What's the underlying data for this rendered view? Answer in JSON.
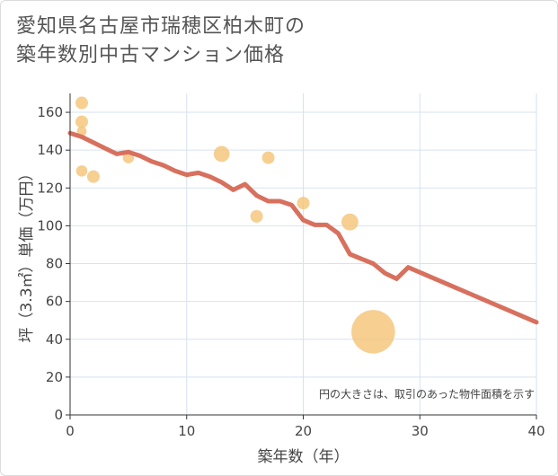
{
  "title_lines": [
    "愛知県名古屋市瑞穂区柏木町の",
    "築年数別中古マンション価格"
  ],
  "chart_data": {
    "type": "scatter",
    "xlabel": "築年数（年）",
    "ylabel": "坪（3.3㎡）単価（万円）",
    "xlim": [
      0,
      40
    ],
    "ylim": [
      0,
      170
    ],
    "xticks": [
      0,
      10,
      20,
      30,
      40
    ],
    "yticks": [
      0,
      20,
      40,
      60,
      80,
      100,
      120,
      140,
      160
    ],
    "grid": true,
    "note": "円の大きさは、取引のあった物件面積を示す",
    "bubble_color": "#f5c77e",
    "line_color": "#d8705e",
    "bubbles": [
      {
        "x": 1,
        "y": 165,
        "size": 1
      },
      {
        "x": 1,
        "y": 155,
        "size": 1
      },
      {
        "x": 1,
        "y": 150,
        "size": 0.6
      },
      {
        "x": 1,
        "y": 129,
        "size": 0.8
      },
      {
        "x": 2,
        "y": 126,
        "size": 1
      },
      {
        "x": 5,
        "y": 136,
        "size": 0.8
      },
      {
        "x": 13,
        "y": 138,
        "size": 1.6
      },
      {
        "x": 16,
        "y": 105,
        "size": 1
      },
      {
        "x": 17,
        "y": 136,
        "size": 1
      },
      {
        "x": 20,
        "y": 112,
        "size": 1
      },
      {
        "x": 24,
        "y": 102,
        "size": 1.8
      },
      {
        "x": 26,
        "y": 44,
        "size": 12
      }
    ],
    "trend_line": [
      {
        "x": 0,
        "y": 149
      },
      {
        "x": 1,
        "y": 147
      },
      {
        "x": 2,
        "y": 144
      },
      {
        "x": 3,
        "y": 141
      },
      {
        "x": 4,
        "y": 138
      },
      {
        "x": 5,
        "y": 139
      },
      {
        "x": 6,
        "y": 137
      },
      {
        "x": 7,
        "y": 134
      },
      {
        "x": 8,
        "y": 132
      },
      {
        "x": 9,
        "y": 129
      },
      {
        "x": 10,
        "y": 127
      },
      {
        "x": 11,
        "y": 128
      },
      {
        "x": 12,
        "y": 126
      },
      {
        "x": 13,
        "y": 123
      },
      {
        "x": 14,
        "y": 119
      },
      {
        "x": 15,
        "y": 122
      },
      {
        "x": 16,
        "y": 116
      },
      {
        "x": 17,
        "y": 113
      },
      {
        "x": 18,
        "y": 113
      },
      {
        "x": 19,
        "y": 111
      },
      {
        "x": 20,
        "y": 103
      },
      {
        "x": 21,
        "y": 100.5
      },
      {
        "x": 22,
        "y": 100.5
      },
      {
        "x": 23,
        "y": 96
      },
      {
        "x": 24,
        "y": 85
      },
      {
        "x": 25,
        "y": 82.5
      },
      {
        "x": 26,
        "y": 80
      },
      {
        "x": 27,
        "y": 75
      },
      {
        "x": 28,
        "y": 72
      },
      {
        "x": 29,
        "y": 78
      },
      {
        "x": 40,
        "y": 49
      }
    ]
  }
}
